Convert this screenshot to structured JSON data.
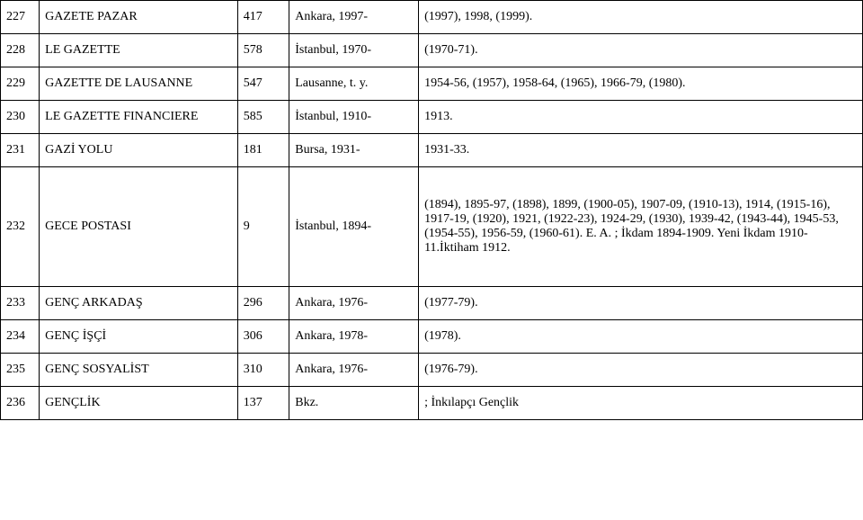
{
  "rows": [
    {
      "idx": "227",
      "title": "GAZETE PAZAR",
      "num": "417",
      "place": "Ankara, 1997-",
      "detail": "(1997), 1998, (1999)."
    },
    {
      "idx": "228",
      "title": "LE GAZETTE",
      "num": "578",
      "place": "İstanbul, 1970-",
      "detail": "(1970-71)."
    },
    {
      "idx": "229",
      "title": "GAZETTE DE LAUSANNE",
      "num": "547",
      "place": "Lausanne, t. y.",
      "detail": "1954-56, (1957), 1958-64, (1965), 1966-79, (1980)."
    },
    {
      "idx": "230",
      "title": "LE GAZETTE FINANCIERE",
      "num": "585",
      "place": "İstanbul, 1910-",
      "detail": "1913."
    },
    {
      "idx": "231",
      "title": "GAZİ YOLU",
      "num": "181",
      "place": "Bursa, 1931-",
      "detail": "1931-33."
    },
    {
      "idx": "232",
      "title": "GECE POSTASI",
      "num": "9",
      "place": "İstanbul, 1894-",
      "detail": "(1894), 1895-97, (1898), 1899, (1900-05), 1907-09, (1910-13), 1914, (1915-16), 1917-19, (1920), 1921, (1922-23), 1924-29, (1930), 1939-42, (1943-44), 1945-53, (1954-55), 1956-59, (1960-61). E. A. ; İkdam 1894-1909. Yeni İkdam 1910-11.İktiham 1912."
    },
    {
      "idx": "233",
      "title": "GENÇ ARKADAŞ",
      "num": "296",
      "place": "Ankara, 1976-",
      "detail": "(1977-79)."
    },
    {
      "idx": "234",
      "title": "GENÇ İŞÇİ",
      "num": "306",
      "place": "Ankara, 1978-",
      "detail": "(1978)."
    },
    {
      "idx": "235",
      "title": "GENÇ SOSYALİST",
      "num": "310",
      "place": "Ankara, 1976-",
      "detail": "(1976-79)."
    },
    {
      "idx": "236",
      "title": "GENÇLİK",
      "num": "137",
      "place": "Bkz.",
      "detail": "; İnkılapçı Gençlik"
    }
  ],
  "tall_row_index": 5
}
